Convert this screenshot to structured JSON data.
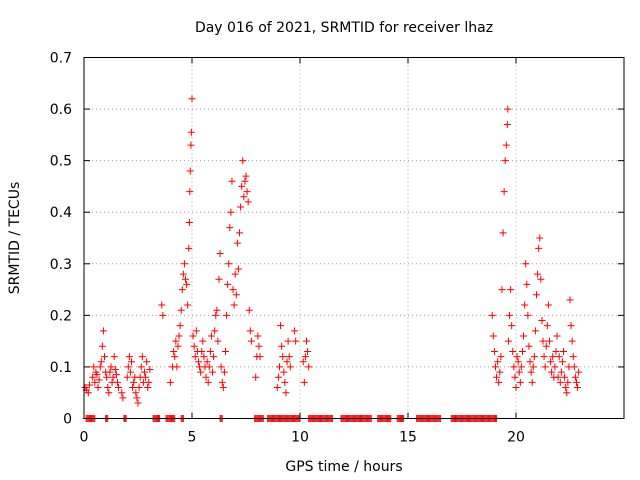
{
  "chart_data": {
    "type": "scatter",
    "title": "Day 016 of 2021, SRMTID for receiver lhaz",
    "xlabel": "GPS time / hours",
    "ylabel": "SRMTID / TECUs",
    "xlim": [
      0,
      25
    ],
    "ylim": [
      0,
      0.7
    ],
    "xticks": [
      0,
      5,
      10,
      15,
      20
    ],
    "xtick_labels": [
      "0",
      "5",
      "10",
      "15",
      "20"
    ],
    "yticks": [
      0,
      0.1,
      0.2,
      0.3,
      0.4,
      0.5,
      0.6,
      0.7
    ],
    "ytick_labels": [
      "0",
      "0.1",
      "0.2",
      "0.3",
      "0.4",
      "0.5",
      "0.6",
      "0.7"
    ],
    "grid": true,
    "marker": "+",
    "series": [
      {
        "name": "SRMTID",
        "color": "#ff0000",
        "points": [
          [
            0.05,
            0.06
          ],
          [
            0.12,
            0.055
          ],
          [
            0.2,
            0.05
          ],
          [
            0.25,
            0.065
          ],
          [
            0.4,
            0.08
          ],
          [
            0.45,
            0.1
          ],
          [
            0.5,
            0.07
          ],
          [
            0.55,
            0.09
          ],
          [
            0.6,
            0.085
          ],
          [
            0.65,
            0.06
          ],
          [
            0.7,
            0.075
          ],
          [
            0.75,
            0.1
          ],
          [
            0.8,
            0.11
          ],
          [
            0.85,
            0.14
          ],
          [
            0.9,
            0.17
          ],
          [
            0.95,
            0.12
          ],
          [
            1.0,
            0.09
          ],
          [
            1.05,
            0.08
          ],
          [
            1.1,
            0.06
          ],
          [
            1.15,
            0.05
          ],
          [
            1.2,
            0.09
          ],
          [
            1.25,
            0.1
          ],
          [
            1.3,
            0.07
          ],
          [
            1.35,
            0.08
          ],
          [
            1.4,
            0.12
          ],
          [
            1.45,
            0.095
          ],
          [
            1.5,
            0.085
          ],
          [
            1.55,
            0.07
          ],
          [
            1.6,
            0.06
          ],
          [
            1.75,
            0.05
          ],
          [
            1.8,
            0.04
          ],
          [
            2.0,
            0.08
          ],
          [
            2.05,
            0.1
          ],
          [
            2.1,
            0.12
          ],
          [
            2.15,
            0.09
          ],
          [
            2.2,
            0.11
          ],
          [
            2.25,
            0.06
          ],
          [
            2.3,
            0.07
          ],
          [
            2.35,
            0.08
          ],
          [
            2.4,
            0.05
          ],
          [
            2.45,
            0.04
          ],
          [
            2.5,
            0.03
          ],
          [
            2.55,
            0.06
          ],
          [
            2.6,
            0.08
          ],
          [
            2.65,
            0.1
          ],
          [
            2.7,
            0.12
          ],
          [
            2.75,
            0.07
          ],
          [
            2.8,
            0.09
          ],
          [
            2.85,
            0.08
          ],
          [
            2.9,
            0.11
          ],
          [
            2.95,
            0.06
          ],
          [
            3.0,
            0.07
          ],
          [
            3.05,
            0.095
          ],
          [
            3.6,
            0.22
          ],
          [
            3.65,
            0.2
          ],
          [
            4.0,
            0.07
          ],
          [
            4.1,
            0.1
          ],
          [
            4.15,
            0.13
          ],
          [
            4.2,
            0.12
          ],
          [
            4.25,
            0.15
          ],
          [
            4.3,
            0.1
          ],
          [
            4.35,
            0.14
          ],
          [
            4.4,
            0.16
          ],
          [
            4.45,
            0.18
          ],
          [
            4.5,
            0.21
          ],
          [
            4.55,
            0.25
          ],
          [
            4.6,
            0.28
          ],
          [
            4.65,
            0.3
          ],
          [
            4.7,
            0.27
          ],
          [
            4.75,
            0.26
          ],
          [
            4.8,
            0.22
          ],
          [
            4.85,
            0.33
          ],
          [
            4.88,
            0.38
          ],
          [
            4.9,
            0.44
          ],
          [
            4.92,
            0.48
          ],
          [
            4.95,
            0.53
          ],
          [
            4.97,
            0.555
          ],
          [
            5.0,
            0.62
          ],
          [
            5.05,
            0.16
          ],
          [
            5.1,
            0.14
          ],
          [
            5.15,
            0.12
          ],
          [
            5.2,
            0.17
          ],
          [
            5.25,
            0.13
          ],
          [
            5.3,
            0.11
          ],
          [
            5.35,
            0.1
          ],
          [
            5.4,
            0.09
          ],
          [
            5.45,
            0.13
          ],
          [
            5.5,
            0.15
          ],
          [
            5.55,
            0.12
          ],
          [
            5.6,
            0.1
          ],
          [
            5.65,
            0.08
          ],
          [
            5.7,
            0.11
          ],
          [
            5.75,
            0.07
          ],
          [
            5.8,
            0.1
          ],
          [
            5.85,
            0.13
          ],
          [
            5.9,
            0.16
          ],
          [
            5.95,
            0.09
          ],
          [
            6.0,
            0.12
          ],
          [
            6.05,
            0.17
          ],
          [
            6.1,
            0.2
          ],
          [
            6.15,
            0.21
          ],
          [
            6.2,
            0.15
          ],
          [
            6.25,
            0.27
          ],
          [
            6.3,
            0.32
          ],
          [
            6.35,
            0.1
          ],
          [
            6.4,
            0.07
          ],
          [
            6.45,
            0.06
          ],
          [
            6.5,
            0.09
          ],
          [
            6.55,
            0.13
          ],
          [
            6.6,
            0.2
          ],
          [
            6.65,
            0.26
          ],
          [
            6.7,
            0.3
          ],
          [
            6.75,
            0.37
          ],
          [
            6.8,
            0.4
          ],
          [
            6.85,
            0.46
          ],
          [
            6.9,
            0.25
          ],
          [
            6.95,
            0.22
          ],
          [
            7.0,
            0.28
          ],
          [
            7.05,
            0.24
          ],
          [
            7.1,
            0.34
          ],
          [
            7.15,
            0.29
          ],
          [
            7.2,
            0.36
          ],
          [
            7.25,
            0.41
          ],
          [
            7.3,
            0.45
          ],
          [
            7.35,
            0.5
          ],
          [
            7.4,
            0.43
          ],
          [
            7.45,
            0.46
          ],
          [
            7.5,
            0.47
          ],
          [
            7.55,
            0.44
          ],
          [
            7.6,
            0.42
          ],
          [
            7.65,
            0.21
          ],
          [
            7.7,
            0.17
          ],
          [
            7.75,
            0.15
          ],
          [
            7.95,
            0.08
          ],
          [
            8.0,
            0.12
          ],
          [
            8.05,
            0.16
          ],
          [
            8.1,
            0.14
          ],
          [
            8.15,
            0.12
          ],
          [
            8.95,
            0.06
          ],
          [
            9.0,
            0.08
          ],
          [
            9.05,
            0.1
          ],
          [
            9.1,
            0.18
          ],
          [
            9.15,
            0.14
          ],
          [
            9.2,
            0.12
          ],
          [
            9.25,
            0.09
          ],
          [
            9.3,
            0.07
          ],
          [
            9.35,
            0.05
          ],
          [
            9.4,
            0.11
          ],
          [
            9.45,
            0.15
          ],
          [
            9.5,
            0.12
          ],
          [
            9.55,
            0.1
          ],
          [
            9.75,
            0.17
          ],
          [
            9.8,
            0.15
          ],
          [
            10.15,
            0.11
          ],
          [
            10.2,
            0.07
          ],
          [
            10.25,
            0.12
          ],
          [
            10.3,
            0.15
          ],
          [
            10.35,
            0.13
          ],
          [
            10.4,
            0.1
          ],
          [
            18.9,
            0.2
          ],
          [
            18.95,
            0.16
          ],
          [
            19.0,
            0.13
          ],
          [
            19.05,
            0.1
          ],
          [
            19.1,
            0.08
          ],
          [
            19.15,
            0.11
          ],
          [
            19.2,
            0.07
          ],
          [
            19.25,
            0.09
          ],
          [
            19.3,
            0.12
          ],
          [
            19.35,
            0.25
          ],
          [
            19.4,
            0.36
          ],
          [
            19.45,
            0.44
          ],
          [
            19.5,
            0.5
          ],
          [
            19.55,
            0.53
          ],
          [
            19.6,
            0.57
          ],
          [
            19.62,
            0.6
          ],
          [
            19.65,
            0.15
          ],
          [
            19.7,
            0.2
          ],
          [
            19.75,
            0.25
          ],
          [
            19.8,
            0.18
          ],
          [
            19.85,
            0.13
          ],
          [
            19.9,
            0.1
          ],
          [
            19.95,
            0.08
          ],
          [
            20.0,
            0.06
          ],
          [
            20.05,
            0.12
          ],
          [
            20.1,
            0.11
          ],
          [
            20.15,
            0.09
          ],
          [
            20.2,
            0.07
          ],
          [
            20.25,
            0.1
          ],
          [
            20.3,
            0.13
          ],
          [
            20.35,
            0.16
          ],
          [
            20.4,
            0.22
          ],
          [
            20.45,
            0.3
          ],
          [
            20.5,
            0.26
          ],
          [
            20.55,
            0.2
          ],
          [
            20.6,
            0.14
          ],
          [
            20.65,
            0.11
          ],
          [
            20.7,
            0.09
          ],
          [
            20.75,
            0.07
          ],
          [
            20.8,
            0.1
          ],
          [
            20.85,
            0.12
          ],
          [
            20.9,
            0.17
          ],
          [
            20.95,
            0.24
          ],
          [
            21.0,
            0.28
          ],
          [
            21.05,
            0.33
          ],
          [
            21.1,
            0.35
          ],
          [
            21.15,
            0.27
          ],
          [
            21.2,
            0.19
          ],
          [
            21.25,
            0.15
          ],
          [
            21.3,
            0.12
          ],
          [
            21.35,
            0.1
          ],
          [
            21.4,
            0.14
          ],
          [
            21.45,
            0.18
          ],
          [
            21.5,
            0.22
          ],
          [
            21.55,
            0.15
          ],
          [
            21.6,
            0.11
          ],
          [
            21.65,
            0.09
          ],
          [
            21.7,
            0.12
          ],
          [
            21.75,
            0.08
          ],
          [
            21.8,
            0.1
          ],
          [
            21.85,
            0.13
          ],
          [
            21.9,
            0.16
          ],
          [
            21.95,
            0.08
          ],
          [
            22.0,
            0.12
          ],
          [
            22.05,
            0.07
          ],
          [
            22.1,
            0.09
          ],
          [
            22.15,
            0.11
          ],
          [
            22.2,
            0.13
          ],
          [
            22.25,
            0.08
          ],
          [
            22.3,
            0.06
          ],
          [
            22.35,
            0.05
          ],
          [
            22.4,
            0.07
          ],
          [
            22.45,
            0.1
          ],
          [
            22.5,
            0.23
          ],
          [
            22.55,
            0.18
          ],
          [
            22.6,
            0.15
          ],
          [
            22.65,
            0.12
          ],
          [
            22.7,
            0.1
          ],
          [
            22.75,
            0.08
          ],
          [
            22.8,
            0.07
          ],
          [
            22.85,
            0.06
          ],
          [
            22.9,
            0.09
          ]
        ]
      }
    ],
    "zero_segments": [
      [
        0.1,
        0.5
      ],
      [
        1.0,
        1.1
      ],
      [
        1.85,
        1.95
      ],
      [
        3.2,
        3.5
      ],
      [
        3.8,
        4.2
      ],
      [
        4.5,
        4.6
      ],
      [
        6.3,
        6.4
      ],
      [
        7.9,
        8.3
      ],
      [
        8.5,
        10.0
      ],
      [
        10.4,
        11.5
      ],
      [
        11.9,
        13.3
      ],
      [
        13.6,
        14.2
      ],
      [
        14.5,
        14.8
      ],
      [
        15.4,
        16.5
      ],
      [
        17.0,
        19.1
      ]
    ]
  }
}
